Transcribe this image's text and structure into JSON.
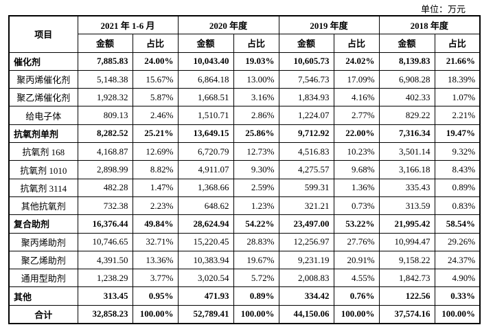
{
  "unit": "单位：万元",
  "header": {
    "item": "项目",
    "periods": [
      "2021 年 1-6 月",
      "2020 年度",
      "2019 年度",
      "2018 年度"
    ],
    "subheaders": [
      "金额",
      "占比"
    ]
  },
  "table": {
    "rows": [
      {
        "bold": true,
        "cells": [
          "催化剂",
          "7,885.83",
          "24.00%",
          "10,043.40",
          "19.03%",
          "10,605.73",
          "24.02%",
          "8,139.83",
          "21.66%"
        ]
      },
      {
        "bold": false,
        "cells": [
          "聚丙烯催化剂",
          "5,148.38",
          "15.67%",
          "6,864.18",
          "13.00%",
          "7,546.73",
          "17.09%",
          "6,908.28",
          "18.39%"
        ]
      },
      {
        "bold": false,
        "cells": [
          "聚乙烯催化剂",
          "1,928.32",
          "5.87%",
          "1,668.51",
          "3.16%",
          "1,834.93",
          "4.16%",
          "402.33",
          "1.07%"
        ]
      },
      {
        "bold": false,
        "cells": [
          "给电子体",
          "809.13",
          "2.46%",
          "1,510.71",
          "2.86%",
          "1,224.07",
          "2.77%",
          "829.22",
          "2.21%"
        ]
      },
      {
        "bold": true,
        "cells": [
          "抗氧剂单剂",
          "8,282.52",
          "25.21%",
          "13,649.15",
          "25.86%",
          "9,712.92",
          "22.00%",
          "7,316.34",
          "19.47%"
        ]
      },
      {
        "bold": false,
        "cells": [
          "抗氧剂 168",
          "4,168.87",
          "12.69%",
          "6,720.79",
          "12.73%",
          "4,516.83",
          "10.23%",
          "3,501.14",
          "9.32%"
        ]
      },
      {
        "bold": false,
        "cells": [
          "抗氧剂 1010",
          "2,898.99",
          "8.82%",
          "4,911.07",
          "9.30%",
          "4,275.57",
          "9.68%",
          "3,166.18",
          "8.43%"
        ]
      },
      {
        "bold": false,
        "cells": [
          "抗氧剂 3114",
          "482.28",
          "1.47%",
          "1,368.66",
          "2.59%",
          "599.31",
          "1.36%",
          "335.43",
          "0.89%"
        ]
      },
      {
        "bold": false,
        "cells": [
          "其他抗氧剂",
          "732.38",
          "2.23%",
          "648.62",
          "1.23%",
          "321.21",
          "0.73%",
          "313.59",
          "0.83%"
        ]
      },
      {
        "bold": true,
        "cells": [
          "复合助剂",
          "16,376.44",
          "49.84%",
          "28,624.94",
          "54.22%",
          "23,497.00",
          "53.22%",
          "21,995.42",
          "58.54%"
        ]
      },
      {
        "bold": false,
        "cells": [
          "聚丙烯助剂",
          "10,746.65",
          "32.71%",
          "15,220.45",
          "28.83%",
          "12,256.97",
          "27.76%",
          "10,994.47",
          "29.26%"
        ]
      },
      {
        "bold": false,
        "cells": [
          "聚乙烯助剂",
          "4,391.50",
          "13.36%",
          "10,383.94",
          "19.67%",
          "9,231.19",
          "20.91%",
          "9,158.22",
          "24.37%"
        ]
      },
      {
        "bold": false,
        "cells": [
          "通用型助剂",
          "1,238.29",
          "3.77%",
          "3,020.54",
          "5.72%",
          "2,008.83",
          "4.55%",
          "1,842.73",
          "4.90%"
        ]
      },
      {
        "bold": true,
        "cells": [
          "其他",
          "313.45",
          "0.95%",
          "471.93",
          "0.89%",
          "334.42",
          "0.76%",
          "122.56",
          "0.33%"
        ]
      },
      {
        "bold": true,
        "total": true,
        "cells": [
          "合计",
          "32,858.23",
          "100.00%",
          "52,789.41",
          "100.00%",
          "44,150.06",
          "100.00%",
          "37,574.16",
          "100.00%"
        ]
      }
    ]
  }
}
